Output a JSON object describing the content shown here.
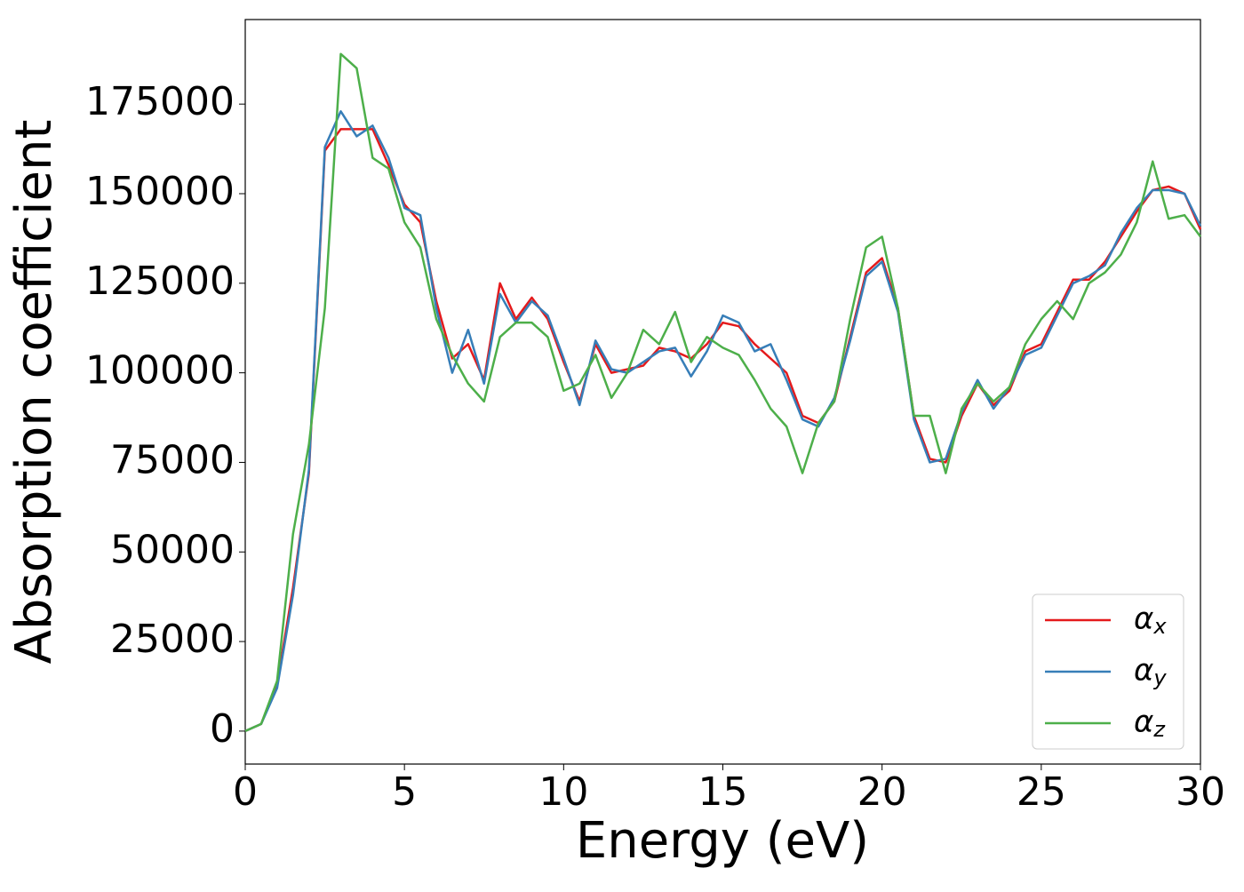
{
  "chart_data": {
    "type": "line",
    "xlabel": "Energy (eV)",
    "ylabel": "Absorption coefficient",
    "x": [
      0,
      0.5,
      1,
      1.5,
      2,
      2.5,
      3,
      3.5,
      4,
      4.5,
      5,
      5.5,
      6,
      6.5,
      7,
      7.5,
      8,
      8.5,
      9,
      9.5,
      10,
      10.5,
      11,
      11.5,
      12,
      12.5,
      13,
      13.5,
      14,
      14.5,
      15,
      15.5,
      16,
      16.5,
      17,
      17.5,
      18,
      18.5,
      19,
      19.5,
      20,
      20.5,
      21,
      21.5,
      22,
      22.5,
      23,
      23.5,
      24,
      24.5,
      25,
      25.5,
      26,
      26.5,
      27,
      27.5,
      28,
      28.5,
      29,
      29.5,
      30
    ],
    "series": [
      {
        "name": "αx",
        "color": "#e41a1c",
        "values": [
          0,
          2000,
          13000,
          40000,
          72000,
          162000,
          168000,
          168000,
          168000,
          158000,
          147000,
          142000,
          120000,
          104000,
          108000,
          98000,
          125000,
          115000,
          121000,
          115000,
          103000,
          92000,
          108000,
          100000,
          101000,
          102000,
          107000,
          106000,
          104000,
          108000,
          114000,
          113000,
          108000,
          104000,
          100000,
          88000,
          86000,
          92000,
          110000,
          128000,
          132000,
          118000,
          88000,
          76000,
          75000,
          88000,
          97000,
          91000,
          95000,
          106000,
          108000,
          117000,
          126000,
          126000,
          131000,
          138000,
          145000,
          151000,
          152000,
          150000,
          140000
        ]
      },
      {
        "name": "αy",
        "color": "#377eb8",
        "values": [
          0,
          2000,
          12000,
          38000,
          73000,
          163000,
          173000,
          166000,
          169000,
          160000,
          146000,
          144000,
          118000,
          100000,
          112000,
          97000,
          122000,
          114000,
          120000,
          116000,
          104000,
          91000,
          109000,
          101000,
          100000,
          103000,
          106000,
          107000,
          99000,
          106000,
          116000,
          114000,
          106000,
          108000,
          98000,
          87000,
          85000,
          93000,
          109000,
          127000,
          131000,
          117000,
          87000,
          75000,
          76000,
          89000,
          98000,
          90000,
          96000,
          105000,
          107000,
          116000,
          125000,
          127000,
          130000,
          139000,
          146000,
          151000,
          151000,
          150000,
          141000
        ]
      },
      {
        "name": "αz",
        "color": "#4daf4a",
        "values": [
          0,
          2000,
          14000,
          55000,
          80000,
          118000,
          189000,
          185000,
          160000,
          157000,
          142000,
          135000,
          115000,
          105000,
          97000,
          92000,
          110000,
          114000,
          114000,
          110000,
          95000,
          97000,
          105000,
          93000,
          100000,
          112000,
          108000,
          117000,
          103000,
          110000,
          107000,
          105000,
          98000,
          90000,
          85000,
          72000,
          86000,
          92000,
          115000,
          135000,
          138000,
          118000,
          88000,
          88000,
          72000,
          90000,
          97000,
          92000,
          96000,
          108000,
          115000,
          120000,
          115000,
          125000,
          128000,
          133000,
          142000,
          159000,
          143000,
          144000,
          138000
        ]
      }
    ],
    "xlim": [
      0,
      30
    ],
    "xticks": [
      0,
      5,
      10,
      15,
      20,
      25,
      30
    ],
    "ylim": [
      -9200,
      198600
    ],
    "yticks": [
      0,
      25000,
      50000,
      75000,
      100000,
      125000,
      150000,
      175000
    ],
    "grid": false,
    "legend": "lower right"
  }
}
